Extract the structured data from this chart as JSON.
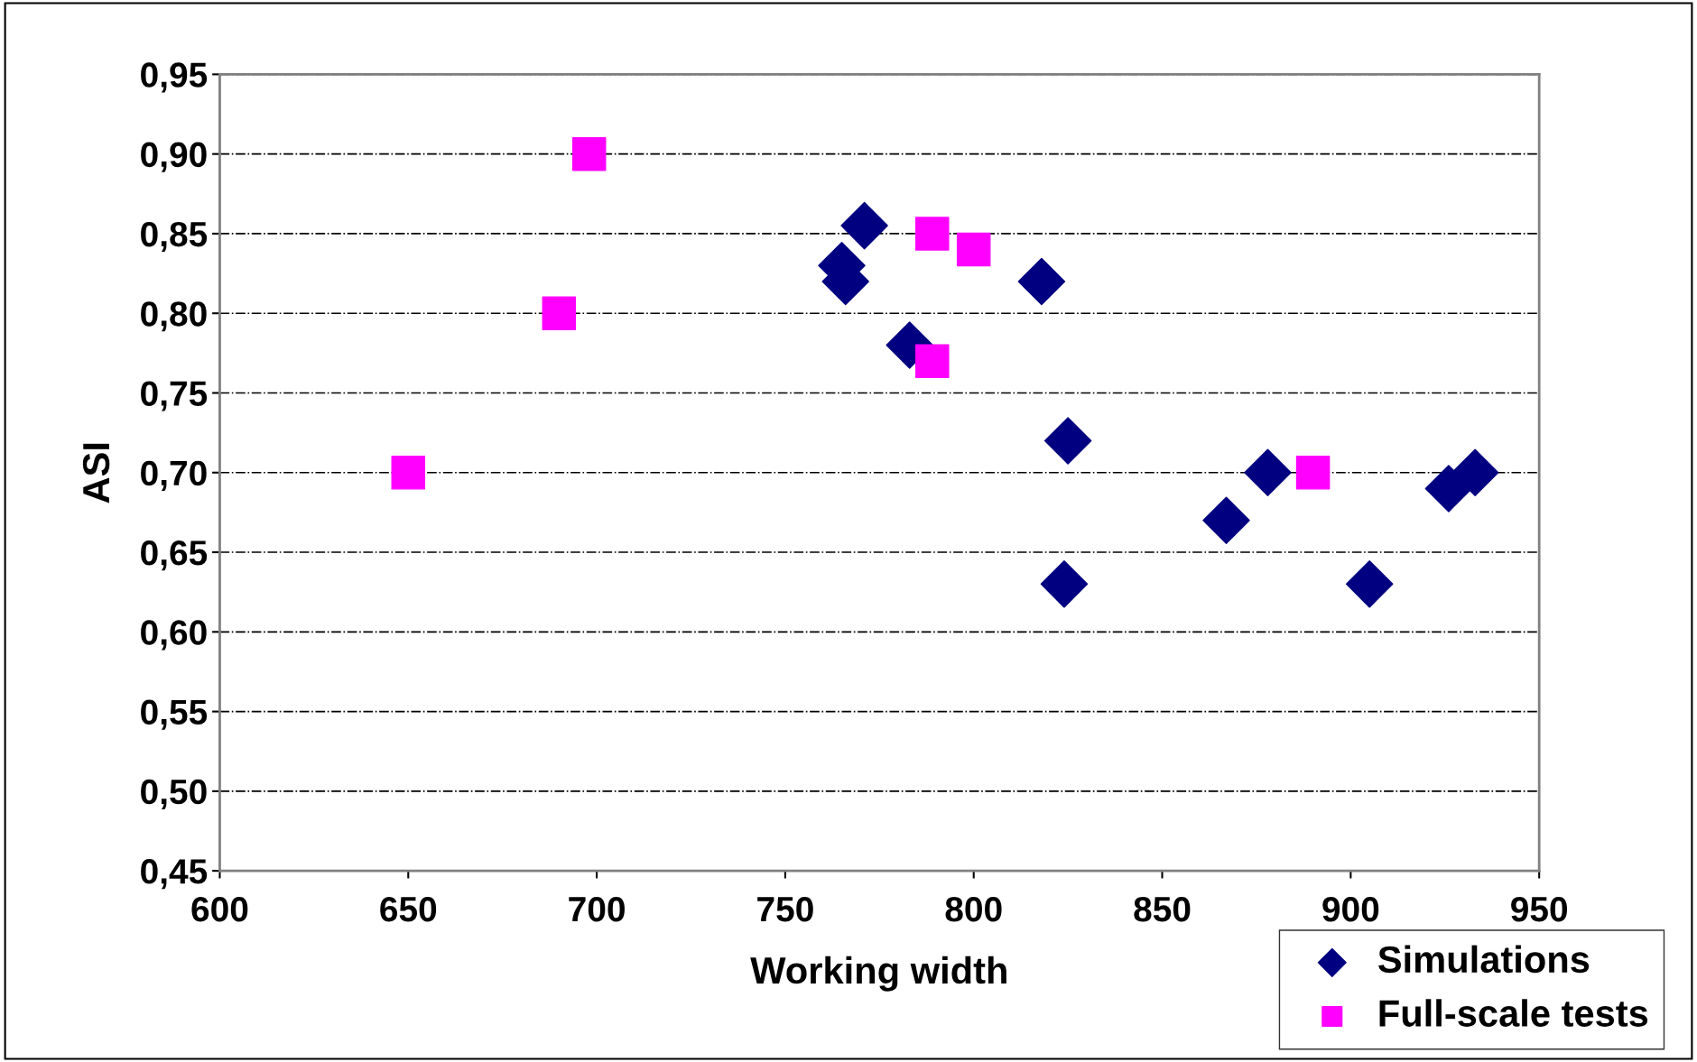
{
  "chart_data": {
    "type": "scatter",
    "xlabel": "Working width",
    "ylabel": "ASI",
    "xlim": [
      600,
      950
    ],
    "xticks": [
      600,
      650,
      700,
      750,
      800,
      850,
      900,
      950
    ],
    "ylim": [
      0.45,
      0.95
    ],
    "yticks": [
      {
        "value": 0.45,
        "label": "0,45"
      },
      {
        "value": 0.5,
        "label": "0,50"
      },
      {
        "value": 0.55,
        "label": "0,55"
      },
      {
        "value": 0.6,
        "label": "0,60"
      },
      {
        "value": 0.65,
        "label": "0,65"
      },
      {
        "value": 0.7,
        "label": "0,70"
      },
      {
        "value": 0.75,
        "label": "0,75"
      },
      {
        "value": 0.8,
        "label": "0,80"
      },
      {
        "value": 0.85,
        "label": "0,85"
      },
      {
        "value": 0.9,
        "label": "0,90"
      },
      {
        "value": 0.95,
        "label": "0,95"
      }
    ],
    "grid": "y",
    "legend": "bottom right",
    "series": [
      {
        "name": "Simulations",
        "color": "#000080",
        "marker": "diamond",
        "x": [
          771,
          765,
          766,
          783,
          818,
          825,
          824,
          867,
          878,
          905,
          926,
          933
        ],
        "values": [
          0.855,
          0.83,
          0.82,
          0.78,
          0.82,
          0.72,
          0.63,
          0.67,
          0.7,
          0.63,
          0.69,
          0.7
        ]
      },
      {
        "name": "Full-scale tests",
        "color": "#ff00ff",
        "marker": "square",
        "x": [
          650,
          690,
          698,
          789,
          800,
          789,
          890
        ],
        "values": [
          0.7,
          0.8,
          0.9,
          0.85,
          0.84,
          0.77,
          0.7
        ]
      }
    ]
  }
}
